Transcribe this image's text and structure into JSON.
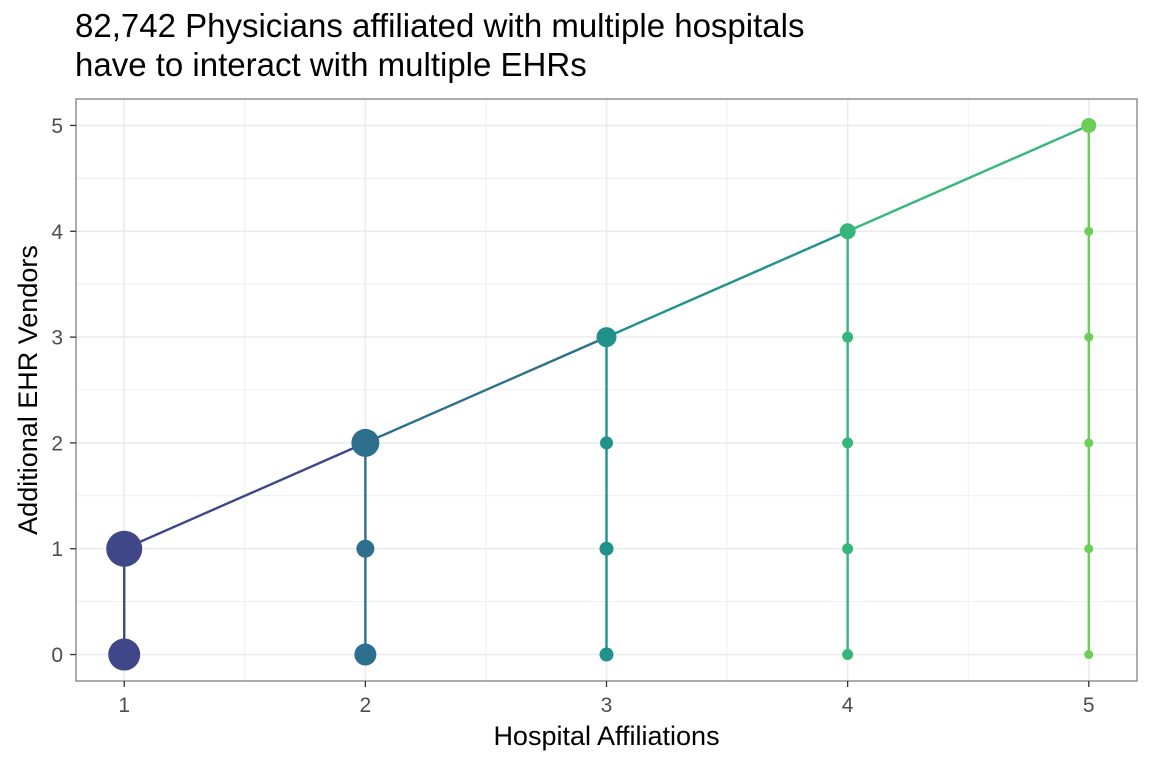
{
  "chart_data": {
    "type": "scatter",
    "title_lines": [
      "82,742 Physicians affiliated with multiple hospitals",
      "have to interact with multiple EHRs"
    ],
    "xlabel": "Hospital Affiliations",
    "ylabel": "Additional EHR Vendors",
    "xlim": [
      0.8,
      5.2
    ],
    "ylim": [
      -0.25,
      5.25
    ],
    "x_ticks": [
      1,
      2,
      3,
      4,
      5
    ],
    "y_ticks": [
      0,
      1,
      2,
      3,
      4,
      5
    ],
    "grid": true,
    "legend": "none",
    "colors": {
      "1": "#3f4788",
      "2": "#2e6f8e",
      "3": "#21918c",
      "4": "#35b779",
      "5": "#6dcd59"
    },
    "diagonal_line": [
      [
        1,
        1
      ],
      [
        2,
        2
      ],
      [
        3,
        3
      ],
      [
        4,
        4
      ],
      [
        5,
        5
      ]
    ],
    "points": [
      {
        "x": 1,
        "y": 0,
        "size": 16
      },
      {
        "x": 1,
        "y": 1,
        "size": 18
      },
      {
        "x": 2,
        "y": 0,
        "size": 11
      },
      {
        "x": 2,
        "y": 1,
        "size": 9
      },
      {
        "x": 2,
        "y": 2,
        "size": 14
      },
      {
        "x": 3,
        "y": 0,
        "size": 7
      },
      {
        "x": 3,
        "y": 1,
        "size": 7
      },
      {
        "x": 3,
        "y": 2,
        "size": 6.5
      },
      {
        "x": 3,
        "y": 3,
        "size": 10
      },
      {
        "x": 4,
        "y": 0,
        "size": 5.5
      },
      {
        "x": 4,
        "y": 1,
        "size": 5.5
      },
      {
        "x": 4,
        "y": 2,
        "size": 5.5
      },
      {
        "x": 4,
        "y": 3,
        "size": 5.5
      },
      {
        "x": 4,
        "y": 4,
        "size": 8
      },
      {
        "x": 5,
        "y": 0,
        "size": 4.5
      },
      {
        "x": 5,
        "y": 1,
        "size": 4.5
      },
      {
        "x": 5,
        "y": 2,
        "size": 4.5
      },
      {
        "x": 5,
        "y": 3,
        "size": 4.5
      },
      {
        "x": 5,
        "y": 4,
        "size": 4.5
      },
      {
        "x": 5,
        "y": 5,
        "size": 7.5
      }
    ]
  }
}
